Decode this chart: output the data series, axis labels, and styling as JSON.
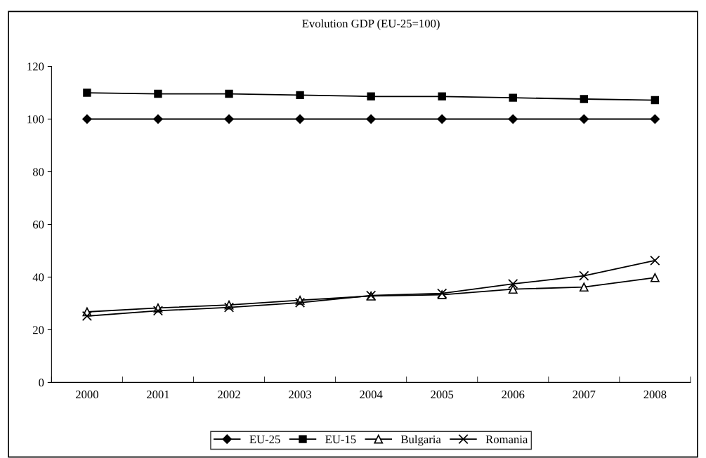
{
  "chart_data": {
    "type": "line",
    "title": "Evolution GDP (EU-25=100)",
    "categories": [
      "2000",
      "2001",
      "2002",
      "2003",
      "2004",
      "2005",
      "2006",
      "2007",
      "2008"
    ],
    "series": [
      {
        "name": "EU-25",
        "color": "#000000",
        "marker": "diamond",
        "values": [
          100,
          100,
          100,
          100,
          100,
          100,
          100,
          100,
          100
        ]
      },
      {
        "name": "EU-15",
        "color": "#000000",
        "marker": "square",
        "values": [
          110,
          109.6,
          109.6,
          109.1,
          108.6,
          108.6,
          108.1,
          107.6,
          107.2
        ]
      },
      {
        "name": "Bulgaria",
        "color": "#000000",
        "marker": "triangle",
        "values": [
          26.8,
          28.3,
          29.4,
          31.2,
          32.8,
          33.3,
          35.4,
          36.2,
          39.8
        ]
      },
      {
        "name": "Romania",
        "color": "#000000",
        "marker": "cross",
        "values": [
          25.2,
          27.2,
          28.5,
          30.3,
          33.0,
          33.8,
          37.4,
          40.5,
          46.3
        ]
      }
    ],
    "ylim": [
      0,
      120
    ],
    "yticks": [
      0,
      20,
      40,
      60,
      80,
      100,
      120
    ],
    "grid": false,
    "legend": "bottom",
    "line_style": "solid"
  }
}
